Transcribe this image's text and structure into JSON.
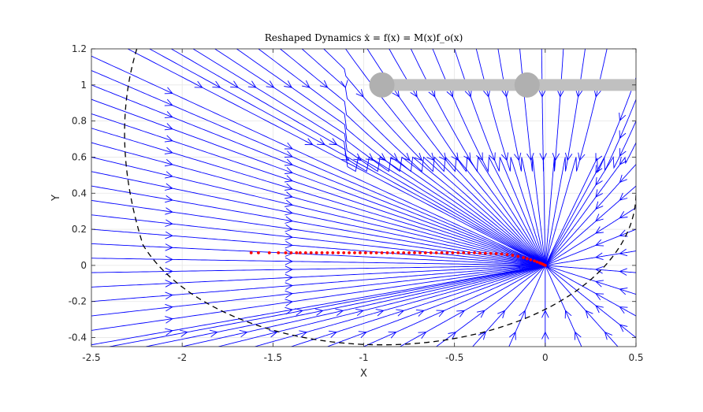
{
  "chart_data": {
    "type": "streamplot",
    "title": "Reshaped Dynamics ẋ = f(x) = M(x)f_o(x)",
    "xlabel": "X",
    "ylabel": "Y",
    "xlim": [
      -2.5,
      0.5
    ],
    "ylim": [
      -0.45,
      1.2
    ],
    "xticks": [
      -2.5,
      -2,
      -1.5,
      -1,
      -0.5,
      0,
      0.5
    ],
    "xtick_labels": [
      "-2.5",
      "-2",
      "-1.5",
      "-1",
      "-0.5",
      "0",
      "0.5"
    ],
    "yticks": [
      -0.4,
      -0.2,
      0,
      0.2,
      0.4,
      0.6,
      0.8,
      1,
      1.2
    ],
    "ytick_labels": [
      "-0.4",
      "-0.2",
      "0",
      "0.2",
      "0.4",
      "0.6",
      "0.8",
      "1",
      "1.2"
    ],
    "grid": true,
    "attractor": [
      0,
      0
    ],
    "streamline_color": "#0000ff",
    "boundary": {
      "style": "dashed",
      "color": "#000000",
      "shape": "ellipse",
      "center": [
        -0.9,
        0.4
      ],
      "radii": [
        1.4,
        0.8
      ],
      "theta_range_deg": [
        200,
        360
      ]
    },
    "trajectory": {
      "color": "#ff0000",
      "points": [
        [
          -1.62,
          0.07
        ],
        [
          -1.58,
          0.07
        ],
        [
          -1.52,
          0.07
        ],
        [
          -1.47,
          0.07
        ],
        [
          -1.43,
          0.07
        ],
        [
          -1.4,
          0.07
        ],
        [
          -1.37,
          0.07
        ],
        [
          -1.35,
          0.07
        ],
        [
          -1.32,
          0.07
        ],
        [
          -1.29,
          0.07
        ],
        [
          -1.26,
          0.07
        ],
        [
          -1.23,
          0.07
        ],
        [
          -1.2,
          0.07
        ],
        [
          -1.17,
          0.07
        ],
        [
          -1.14,
          0.07
        ],
        [
          -1.11,
          0.07
        ],
        [
          -1.08,
          0.07
        ],
        [
          -1.05,
          0.07
        ],
        [
          -1.02,
          0.07
        ],
        [
          -0.99,
          0.07
        ],
        [
          -0.96,
          0.07
        ],
        [
          -0.93,
          0.07
        ],
        [
          -0.9,
          0.07
        ],
        [
          -0.87,
          0.07
        ],
        [
          -0.84,
          0.07
        ],
        [
          -0.81,
          0.07
        ],
        [
          -0.78,
          0.07
        ],
        [
          -0.75,
          0.07
        ],
        [
          -0.72,
          0.07
        ],
        [
          -0.69,
          0.07
        ],
        [
          -0.66,
          0.07
        ],
        [
          -0.63,
          0.07
        ],
        [
          -0.6,
          0.07
        ],
        [
          -0.57,
          0.07
        ],
        [
          -0.54,
          0.07
        ],
        [
          -0.51,
          0.07
        ],
        [
          -0.48,
          0.07
        ],
        [
          -0.45,
          0.07
        ],
        [
          -0.42,
          0.07
        ],
        [
          -0.39,
          0.07
        ],
        [
          -0.36,
          0.068
        ],
        [
          -0.33,
          0.067
        ],
        [
          -0.3,
          0.066
        ],
        [
          -0.27,
          0.065
        ],
        [
          -0.24,
          0.063
        ],
        [
          -0.21,
          0.06
        ],
        [
          -0.18,
          0.056
        ],
        [
          -0.15,
          0.05
        ],
        [
          -0.12,
          0.043
        ],
        [
          -0.1,
          0.037
        ],
        [
          -0.08,
          0.031
        ],
        [
          -0.06,
          0.025
        ],
        [
          -0.045,
          0.019
        ],
        [
          -0.03,
          0.014
        ],
        [
          -0.02,
          0.01
        ],
        [
          -0.01,
          0.005
        ],
        [
          0,
          0
        ]
      ]
    },
    "obstacle": {
      "color": "#c0c0c0",
      "joint_color": "#b0b0b0",
      "links": [
        [
          [
            -0.9,
            1.0
          ],
          [
            -0.1,
            1.0
          ]
        ],
        [
          [
            -0.1,
            1.0
          ],
          [
            0.5,
            1.0
          ]
        ]
      ],
      "joints": [
        [
          -0.9,
          1.0
        ],
        [
          -0.1,
          1.0
        ]
      ]
    }
  }
}
